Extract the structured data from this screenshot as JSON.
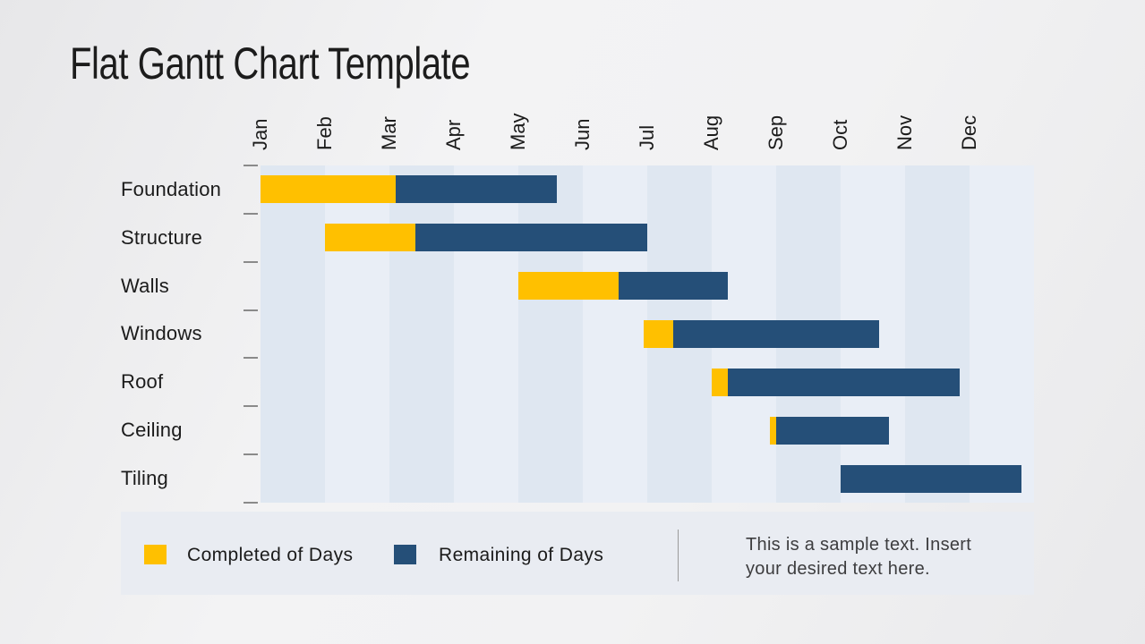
{
  "slide": {
    "title": "Flat Gantt Chart Template"
  },
  "legend": {
    "completed_label": "Completed of Days",
    "remaining_label": "Remaining of Days"
  },
  "note": {
    "line1": "This is a sample text. Insert",
    "line2": "your desired text here."
  },
  "colors": {
    "completed": "#FFC000",
    "remaining": "#254F78",
    "band_dark": "#dfe7f1",
    "band_light": "#e9eef6",
    "legend_bg": "#e9ecf2",
    "tick": "#8a8a8a",
    "divider": "#9b9b9b"
  },
  "chart_data": {
    "type": "bar",
    "subtype": "gantt",
    "orientation": "horizontal",
    "title": "Flat Gantt Chart Template",
    "categories": [
      "Foundation",
      "Structure",
      "Walls",
      "Windows",
      "Roof",
      "Ceiling",
      "Tiling"
    ],
    "x_axis": {
      "unit": "months",
      "tick_labels": [
        "Jan",
        "Feb",
        "Mar",
        "Apr",
        "May",
        "Jun",
        "Jul",
        "Aug",
        "Sep",
        "Oct",
        "Nov",
        "Dec"
      ],
      "range": [
        0,
        12
      ]
    },
    "series": [
      {
        "name": "Completed of Days",
        "color": "#FFC000",
        "start_month": [
          0,
          1,
          4,
          5.95,
          7,
          7.9,
          9
        ],
        "duration_months": [
          2.1,
          1.4,
          1.55,
          0.45,
          0.25,
          0.1,
          0
        ]
      },
      {
        "name": "Remaining of Days",
        "color": "#254F78",
        "duration_months": [
          2.5,
          3.6,
          1.7,
          3.2,
          3.6,
          1.75,
          2.8
        ]
      }
    ],
    "legend_position": "bottom",
    "grid": "alternating vertical month bands, no gridlines"
  }
}
